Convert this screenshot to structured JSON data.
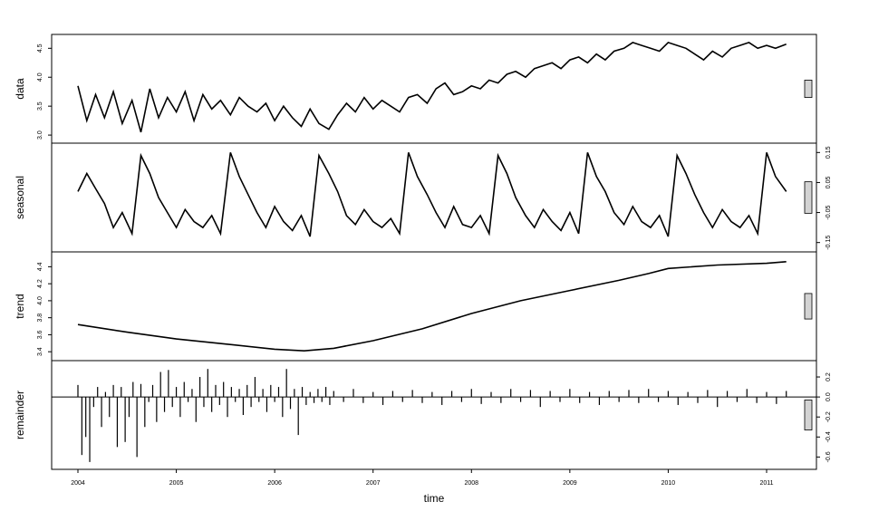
{
  "chart_data": {
    "type": "line",
    "xlabel": "time",
    "x_ticks": [
      2004,
      2005,
      2006,
      2007,
      2008,
      2009,
      2010,
      2011
    ],
    "x_range": [
      2004,
      2011.2
    ],
    "colors": {
      "line": "#000000",
      "scale_bar": "#d3d3d3",
      "frame": "#000000"
    },
    "panels": [
      {
        "ylabel": "data",
        "kind": "line",
        "ylim": [
          2.97,
          4.63
        ],
        "y_ticks": [
          3.0,
          3.5,
          4.0,
          4.5
        ],
        "y_tick_side": "left",
        "x": [
          2004.0,
          2004.09,
          2004.18,
          2004.27,
          2004.36,
          2004.45,
          2004.55,
          2004.64,
          2004.73,
          2004.82,
          2004.91,
          2005.0,
          2005.09,
          2005.18,
          2005.27,
          2005.36,
          2005.45,
          2005.55,
          2005.64,
          2005.73,
          2005.82,
          2005.91,
          2006.0,
          2006.09,
          2006.18,
          2006.27,
          2006.36,
          2006.45,
          2006.55,
          2006.64,
          2006.73,
          2006.82,
          2006.91,
          2007.0,
          2007.09,
          2007.18,
          2007.27,
          2007.36,
          2007.45,
          2007.55,
          2007.64,
          2007.73,
          2007.82,
          2007.91,
          2008.0,
          2008.09,
          2008.18,
          2008.27,
          2008.36,
          2008.45,
          2008.55,
          2008.64,
          2008.73,
          2008.82,
          2008.91,
          2009.0,
          2009.09,
          2009.18,
          2009.27,
          2009.36,
          2009.45,
          2009.55,
          2009.64,
          2009.73,
          2009.82,
          2009.91,
          2010.0,
          2010.09,
          2010.18,
          2010.27,
          2010.36,
          2010.45,
          2010.55,
          2010.64,
          2010.73,
          2010.82,
          2010.91,
          2011.0,
          2011.09,
          2011.2
        ],
        "values": [
          3.85,
          3.25,
          3.7,
          3.3,
          3.75,
          3.2,
          3.6,
          3.05,
          3.8,
          3.3,
          3.65,
          3.4,
          3.75,
          3.25,
          3.7,
          3.45,
          3.6,
          3.35,
          3.65,
          3.5,
          3.4,
          3.55,
          3.25,
          3.5,
          3.3,
          3.15,
          3.45,
          3.2,
          3.1,
          3.35,
          3.55,
          3.4,
          3.65,
          3.45,
          3.6,
          3.5,
          3.4,
          3.65,
          3.7,
          3.55,
          3.8,
          3.9,
          3.7,
          3.75,
          3.85,
          3.8,
          3.95,
          3.9,
          4.05,
          4.1,
          4.0,
          4.15,
          4.2,
          4.25,
          4.15,
          4.3,
          4.35,
          4.25,
          4.4,
          4.3,
          4.45,
          4.5,
          4.6,
          4.55,
          4.5,
          4.45,
          4.6,
          4.55,
          4.5,
          4.4,
          4.3,
          4.45,
          4.35,
          4.5,
          4.55,
          4.6,
          4.5,
          4.55,
          4.5,
          4.57
        ]
      },
      {
        "ylabel": "seasonal",
        "kind": "line",
        "ylim": [
          -0.16,
          0.16
        ],
        "y_ticks": [
          -0.15,
          -0.05,
          0.05,
          0.15
        ],
        "y_tick_side": "right",
        "x": [
          2004.0,
          2004.09,
          2004.18,
          2004.27,
          2004.36,
          2004.45,
          2004.55,
          2004.64,
          2004.73,
          2004.82,
          2004.91,
          2005.0,
          2005.09,
          2005.18,
          2005.27,
          2005.36,
          2005.45,
          2005.55,
          2005.64,
          2005.73,
          2005.82,
          2005.91,
          2006.0,
          2006.09,
          2006.18,
          2006.27,
          2006.36,
          2006.45,
          2006.55,
          2006.64,
          2006.73,
          2006.82,
          2006.91,
          2007.0,
          2007.09,
          2007.18,
          2007.27,
          2007.36,
          2007.45,
          2007.55,
          2007.64,
          2007.73,
          2007.82,
          2007.91,
          2008.0,
          2008.09,
          2008.18,
          2008.27,
          2008.36,
          2008.45,
          2008.55,
          2008.64,
          2008.73,
          2008.82,
          2008.91,
          2009.0,
          2009.09,
          2009.18,
          2009.27,
          2009.36,
          2009.45,
          2009.55,
          2009.64,
          2009.73,
          2009.82,
          2009.91,
          2010.0,
          2010.09,
          2010.18,
          2010.27,
          2010.36,
          2010.45,
          2010.55,
          2010.64,
          2010.73,
          2010.82,
          2010.91,
          2011.0,
          2011.09,
          2011.2
        ],
        "values": [
          0.02,
          0.08,
          0.03,
          -0.02,
          -0.1,
          -0.05,
          -0.12,
          0.14,
          0.08,
          0.0,
          -0.05,
          -0.1,
          -0.04,
          -0.08,
          -0.1,
          -0.06,
          -0.12,
          0.15,
          0.07,
          0.01,
          -0.05,
          -0.1,
          -0.03,
          -0.08,
          -0.11,
          -0.06,
          -0.13,
          0.14,
          0.08,
          0.02,
          -0.06,
          -0.09,
          -0.04,
          -0.08,
          -0.1,
          -0.07,
          -0.12,
          0.15,
          0.07,
          0.01,
          -0.05,
          -0.1,
          -0.03,
          -0.09,
          -0.1,
          -0.06,
          -0.12,
          0.14,
          0.08,
          0.0,
          -0.06,
          -0.1,
          -0.04,
          -0.08,
          -0.11,
          -0.05,
          -0.12,
          0.15,
          0.07,
          0.02,
          -0.05,
          -0.09,
          -0.03,
          -0.08,
          -0.1,
          -0.06,
          -0.13,
          0.14,
          0.08,
          0.01,
          -0.05,
          -0.1,
          -0.04,
          -0.08,
          -0.1,
          -0.06,
          -0.12,
          0.15,
          0.07,
          0.02
        ]
      },
      {
        "ylabel": "trend",
        "kind": "line",
        "ylim": [
          3.37,
          4.5
        ],
        "y_ticks": [
          3.4,
          3.6,
          3.8,
          4.0,
          4.2,
          4.4
        ],
        "y_tick_side": "left",
        "x": [
          2004.0,
          2004.5,
          2005.0,
          2005.5,
          2006.0,
          2006.3,
          2006.6,
          2007.0,
          2007.5,
          2008.0,
          2008.5,
          2009.0,
          2009.5,
          2009.8,
          2010.0,
          2010.5,
          2011.0,
          2011.2
        ],
        "values": [
          3.72,
          3.63,
          3.55,
          3.49,
          3.43,
          3.41,
          3.44,
          3.53,
          3.67,
          3.85,
          4.0,
          4.12,
          4.24,
          4.32,
          4.38,
          4.42,
          4.44,
          4.46
        ]
      },
      {
        "ylabel": "remainder",
        "kind": "bars",
        "ylim": [
          -0.66,
          0.3
        ],
        "y_ticks": [
          -0.6,
          -0.4,
          -0.2,
          0.0,
          0.2
        ],
        "y_tick_side": "right",
        "x": [
          2004.0,
          2004.04,
          2004.08,
          2004.12,
          2004.16,
          2004.2,
          2004.24,
          2004.28,
          2004.32,
          2004.36,
          2004.4,
          2004.44,
          2004.48,
          2004.52,
          2004.56,
          2004.6,
          2004.64,
          2004.68,
          2004.72,
          2004.76,
          2004.8,
          2004.84,
          2004.88,
          2004.92,
          2004.96,
          2005.0,
          2005.04,
          2005.08,
          2005.12,
          2005.16,
          2005.2,
          2005.24,
          2005.28,
          2005.32,
          2005.36,
          2005.4,
          2005.44,
          2005.48,
          2005.52,
          2005.56,
          2005.6,
          2005.64,
          2005.68,
          2005.72,
          2005.76,
          2005.8,
          2005.84,
          2005.88,
          2005.92,
          2005.96,
          2006.0,
          2006.04,
          2006.08,
          2006.12,
          2006.16,
          2006.2,
          2006.24,
          2006.28,
          2006.32,
          2006.36,
          2006.4,
          2006.44,
          2006.48,
          2006.52,
          2006.56,
          2006.6,
          2006.7,
          2006.8,
          2006.9,
          2007.0,
          2007.1,
          2007.2,
          2007.3,
          2007.4,
          2007.5,
          2007.6,
          2007.7,
          2007.8,
          2007.9,
          2008.0,
          2008.1,
          2008.2,
          2008.3,
          2008.4,
          2008.5,
          2008.6,
          2008.7,
          2008.8,
          2008.9,
          2009.0,
          2009.1,
          2009.2,
          2009.3,
          2009.4,
          2009.5,
          2009.6,
          2009.7,
          2009.8,
          2009.9,
          2010.0,
          2010.1,
          2010.2,
          2010.3,
          2010.4,
          2010.5,
          2010.6,
          2010.7,
          2010.8,
          2010.9,
          2011.0,
          2011.1,
          2011.2
        ],
        "values": [
          0.12,
          -0.58,
          -0.4,
          -0.65,
          -0.1,
          0.1,
          -0.3,
          0.05,
          -0.2,
          0.12,
          -0.5,
          0.1,
          -0.45,
          -0.2,
          0.15,
          -0.6,
          0.13,
          -0.3,
          -0.05,
          0.12,
          -0.25,
          0.25,
          -0.15,
          0.27,
          -0.1,
          0.1,
          -0.2,
          0.15,
          -0.05,
          0.08,
          -0.25,
          0.2,
          -0.1,
          0.28,
          -0.15,
          0.12,
          -0.08,
          0.15,
          -0.2,
          0.1,
          -0.05,
          0.08,
          -0.18,
          0.12,
          -0.1,
          0.2,
          -0.05,
          0.08,
          -0.15,
          0.12,
          -0.05,
          0.1,
          -0.2,
          0.28,
          -0.12,
          0.08,
          -0.38,
          0.1,
          -0.08,
          0.05,
          -0.06,
          0.08,
          -0.05,
          0.1,
          -0.08,
          0.06,
          -0.05,
          0.08,
          -0.06,
          0.05,
          -0.08,
          0.06,
          -0.05,
          0.07,
          -0.06,
          0.05,
          -0.08,
          0.06,
          -0.05,
          0.08,
          -0.07,
          0.05,
          -0.06,
          0.08,
          -0.05,
          0.07,
          -0.1,
          0.06,
          -0.05,
          0.08,
          -0.06,
          0.05,
          -0.08,
          0.06,
          -0.05,
          0.07,
          -0.06,
          0.08,
          -0.05,
          0.06,
          -0.08,
          0.05,
          -0.06,
          0.07,
          -0.1,
          0.06,
          -0.05,
          0.08,
          -0.06,
          0.05,
          -0.07,
          0.06
        ]
      }
    ]
  }
}
